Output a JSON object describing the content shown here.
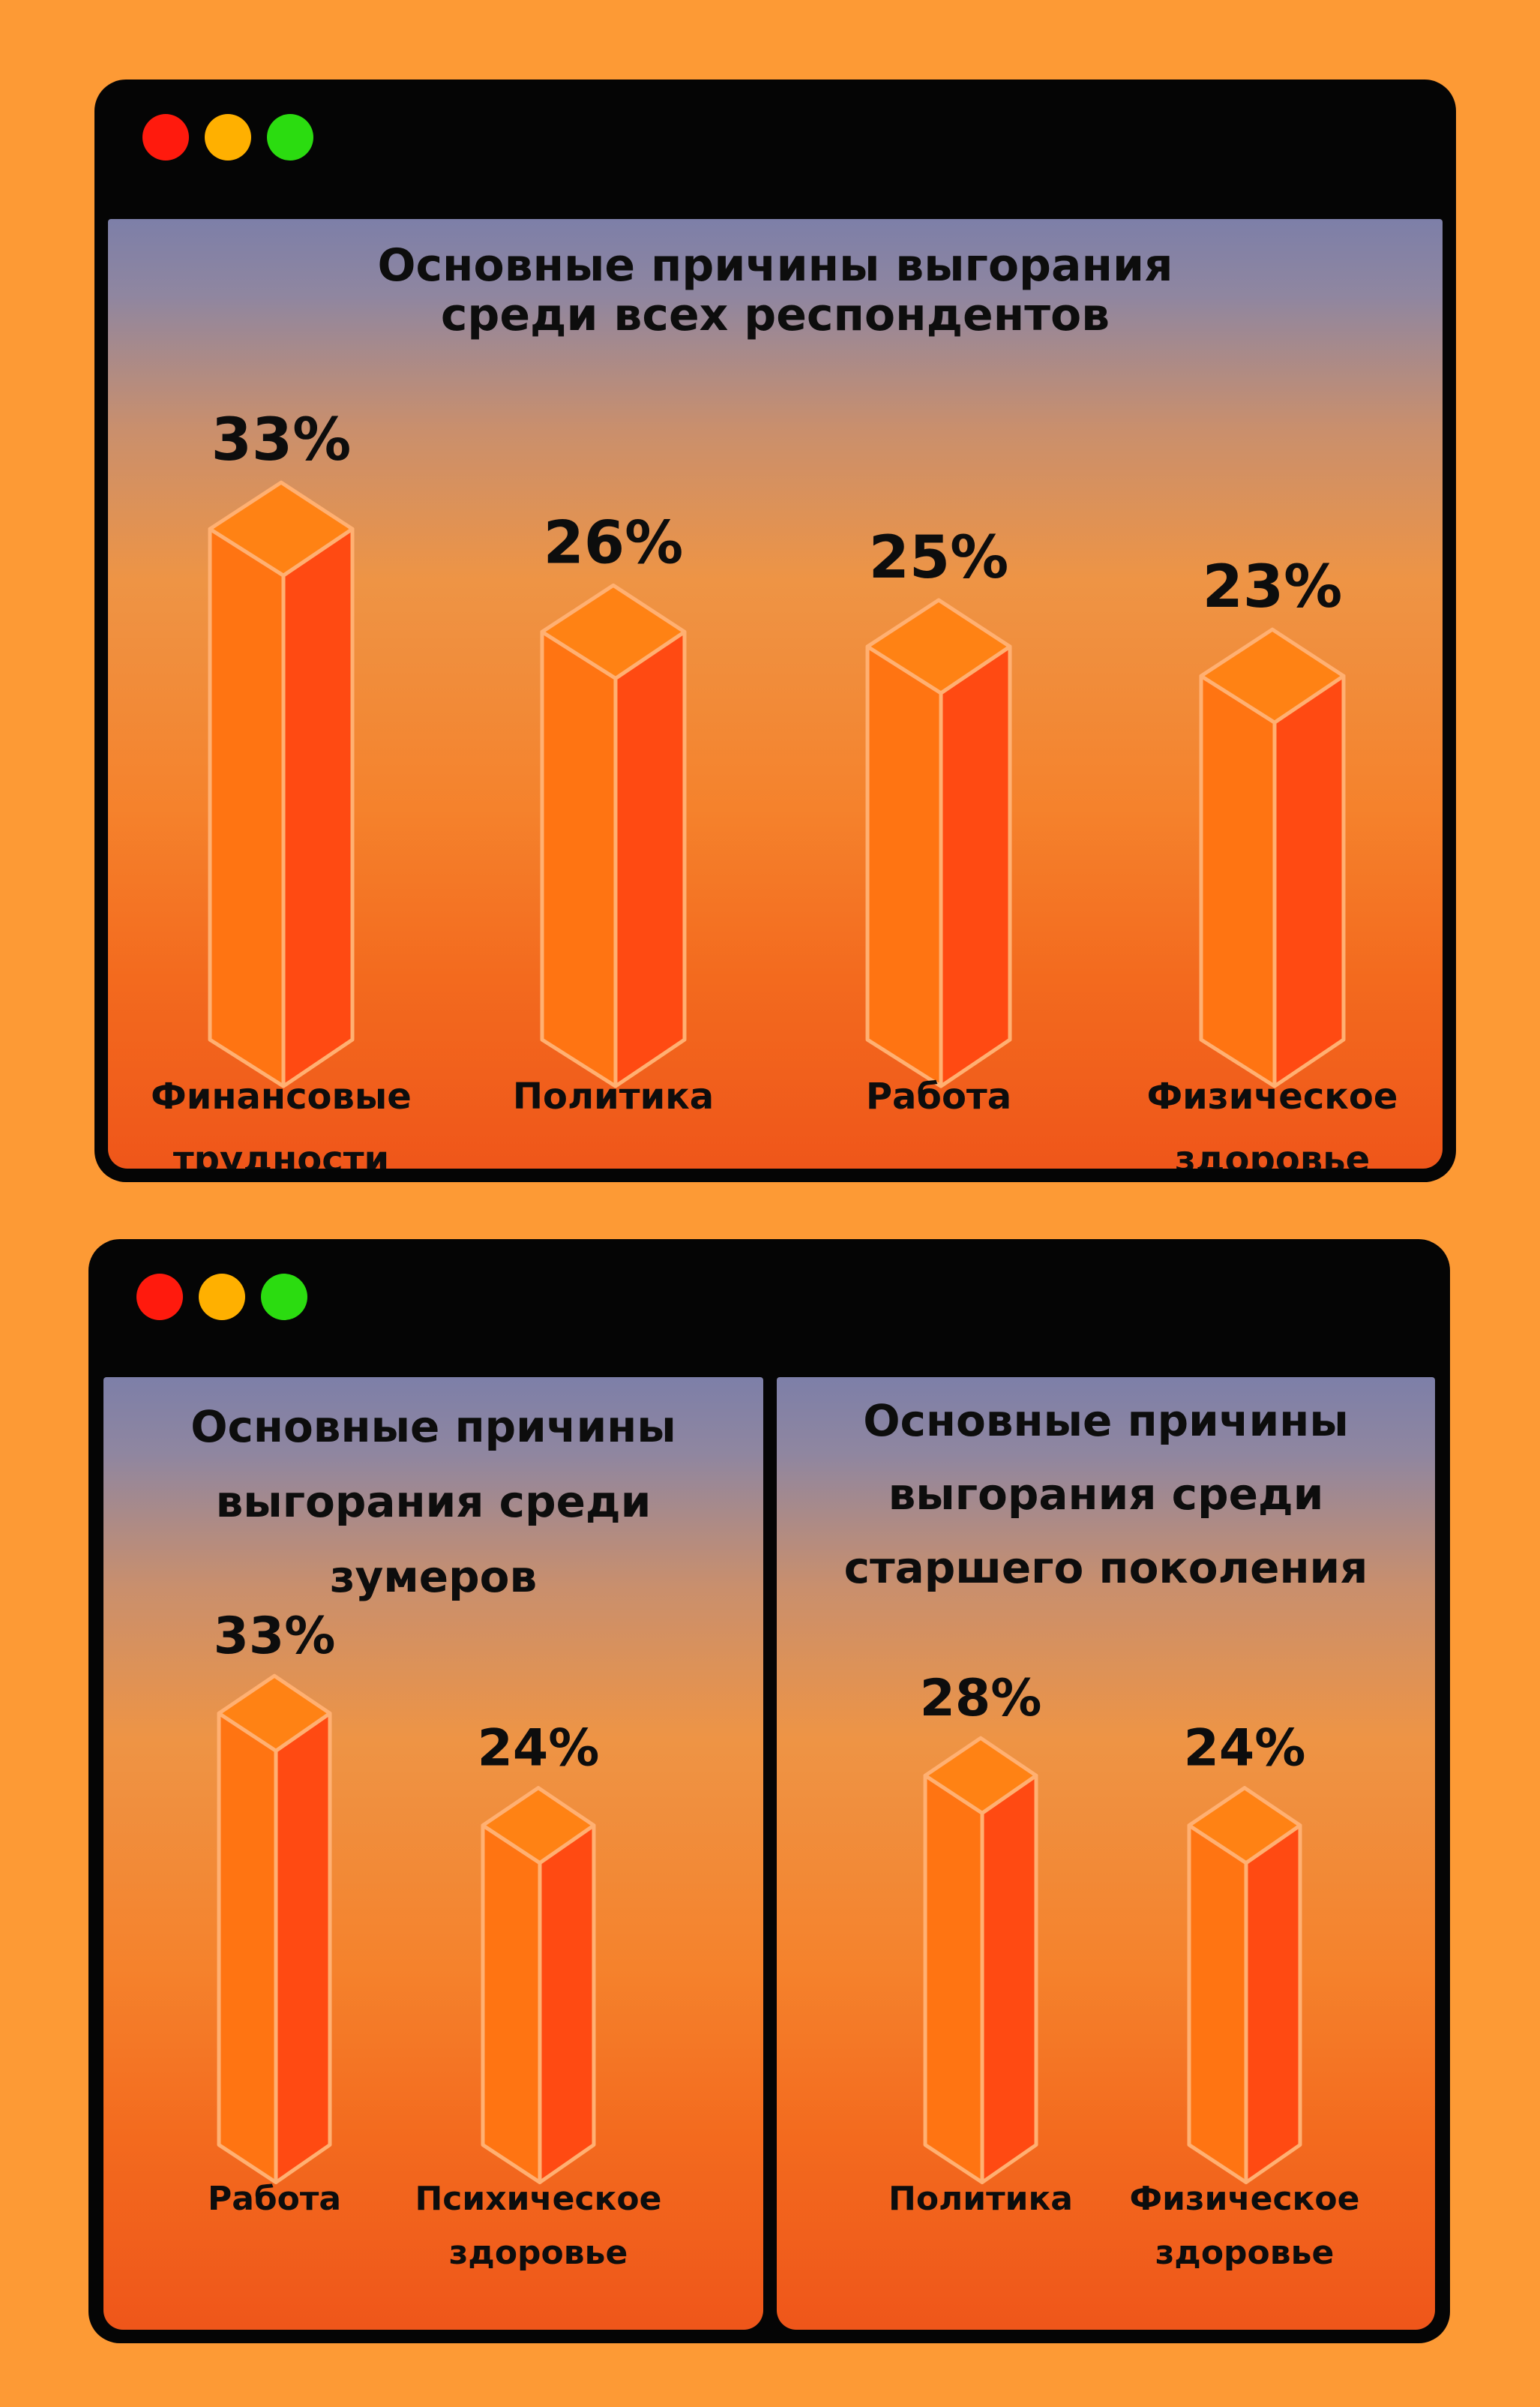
{
  "window_controls": {
    "colors": {
      "close": "#ff1a0d",
      "minimize": "#ffb000",
      "maximize": "#2bdc10"
    }
  },
  "chart_data": [
    {
      "type": "bar",
      "title_lines": [
        "Основные причины выгорания",
        "среди всех респондентов"
      ],
      "categories": [
        [
          "Финансовые",
          "трудности"
        ],
        [
          "Политика"
        ],
        [
          "Работа"
        ],
        [
          "Физическое",
          "здоровье"
        ]
      ],
      "values": [
        33,
        26,
        25,
        23
      ],
      "value_labels": [
        "33%",
        "26%",
        "25%",
        "23%"
      ],
      "unit": "%",
      "xlabel": "",
      "ylabel": ""
    },
    {
      "type": "bar",
      "title_lines": [
        "Основные причины",
        "выгорания среди",
        "зумеров"
      ],
      "categories": [
        [
          "Работа"
        ],
        [
          "Психическое",
          "здоровье"
        ]
      ],
      "values": [
        33,
        24
      ],
      "value_labels": [
        "33%",
        "24%"
      ],
      "unit": "%",
      "xlabel": "",
      "ylabel": ""
    },
    {
      "type": "bar",
      "title_lines": [
        "Основные причины",
        "выгорания среди",
        "старшего поколения"
      ],
      "categories": [
        [
          "Политика"
        ],
        [
          "Физическое",
          "здоровье"
        ]
      ],
      "values": [
        28,
        24
      ],
      "value_labels": [
        "28%",
        "24%"
      ],
      "unit": "%",
      "xlabel": "",
      "ylabel": ""
    }
  ]
}
